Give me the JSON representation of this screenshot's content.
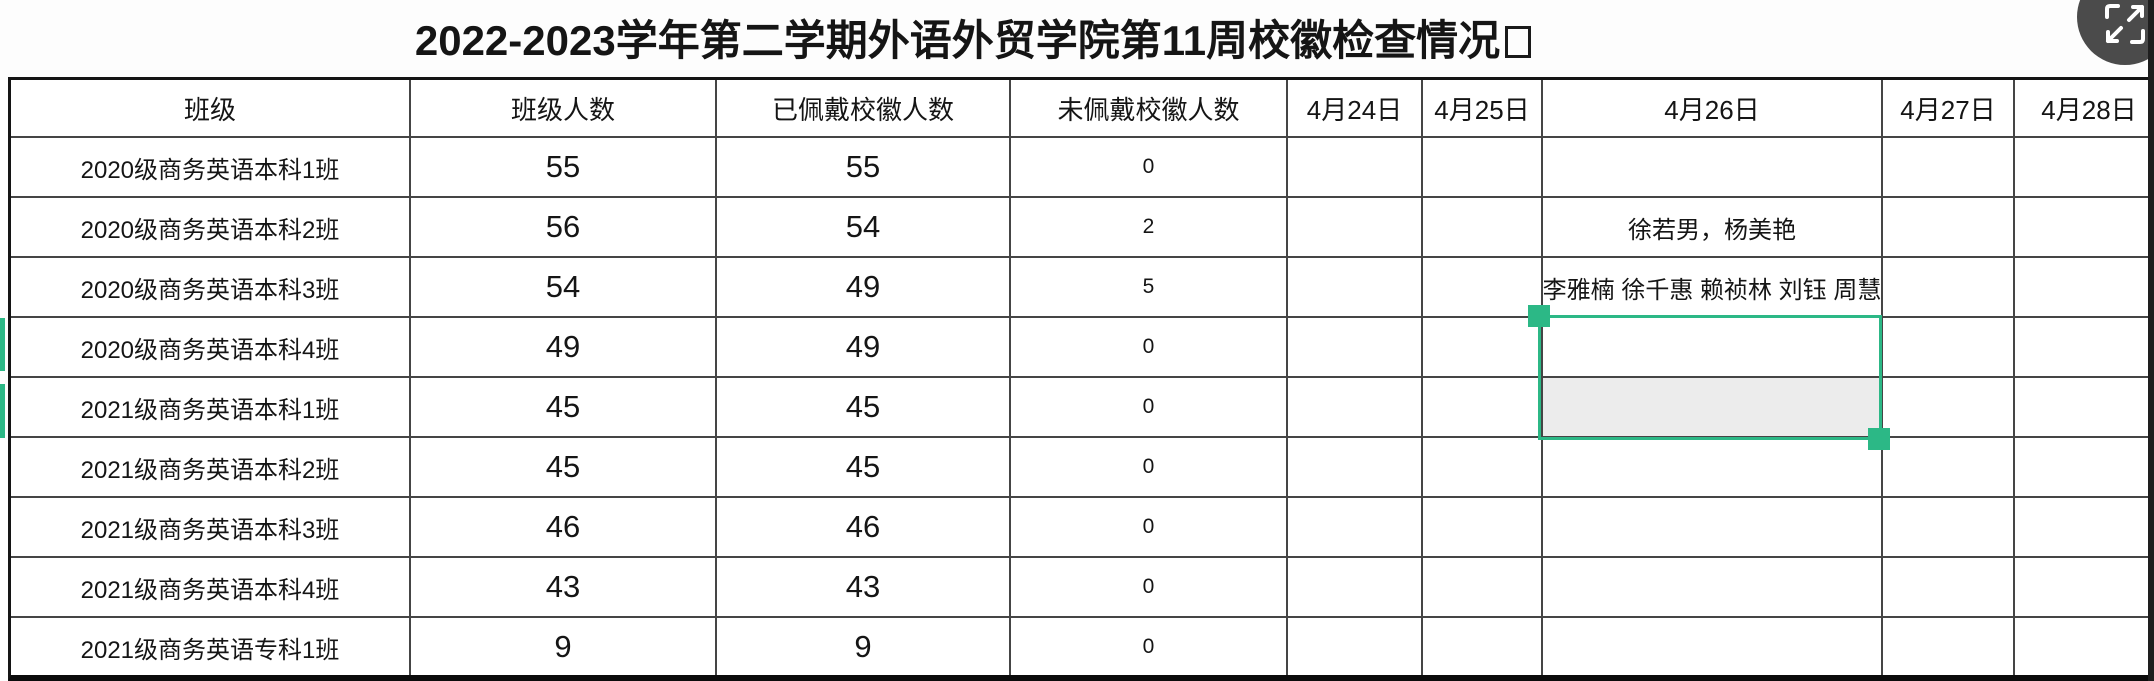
{
  "title": {
    "text": "2022-2023学年第二学期外语外贸学院第11周校徽检查情况",
    "trailing_box_char": "□"
  },
  "controls": {
    "fullscreen_button_icon": "expand-icon"
  },
  "colors": {
    "selection_green": "#2cb886",
    "grid_line": "#454545",
    "selected_cell_fill": "#ececec",
    "circle_button": "#4b4b4b"
  },
  "table": {
    "columns": [
      "班级",
      "班级人数",
      "已佩戴校徽人数",
      "未佩戴校徽人数",
      "4月24日",
      "4月25日",
      "4月26日",
      "4月27日",
      "4月28日"
    ],
    "rows": [
      [
        "2020级商务英语本科1班",
        "55",
        "55",
        "0",
        "",
        "",
        "",
        "",
        ""
      ],
      [
        "2020级商务英语本科2班",
        "56",
        "54",
        "2",
        "",
        "",
        "徐若男，杨美艳",
        "",
        ""
      ],
      [
        "2020级商务英语本科3班",
        "54",
        "49",
        "5",
        "",
        "",
        "李雅楠 徐千惠 赖祯林 刘钰 周慧",
        "",
        ""
      ],
      [
        "2020级商务英语本科4班",
        "49",
        "49",
        "0",
        "",
        "",
        "",
        "",
        ""
      ],
      [
        "2021级商务英语本科1班",
        "45",
        "45",
        "0",
        "",
        "",
        "",
        "",
        ""
      ],
      [
        "2021级商务英语本科2班",
        "45",
        "45",
        "0",
        "",
        "",
        "",
        "",
        ""
      ],
      [
        "2021级商务英语本科3班",
        "46",
        "46",
        "0",
        "",
        "",
        "",
        "",
        ""
      ],
      [
        "2021级商务英语本科4班",
        "43",
        "43",
        "0",
        "",
        "",
        "",
        "",
        ""
      ],
      [
        "2021级商务英语专科1班",
        "9",
        "9",
        "0",
        "",
        "",
        "",
        "",
        ""
      ]
    ]
  },
  "selection": {
    "column": "4月26日",
    "selected_rows": [
      "2020级商务英语本科4班",
      "2021级商务英语本科1班"
    ]
  }
}
